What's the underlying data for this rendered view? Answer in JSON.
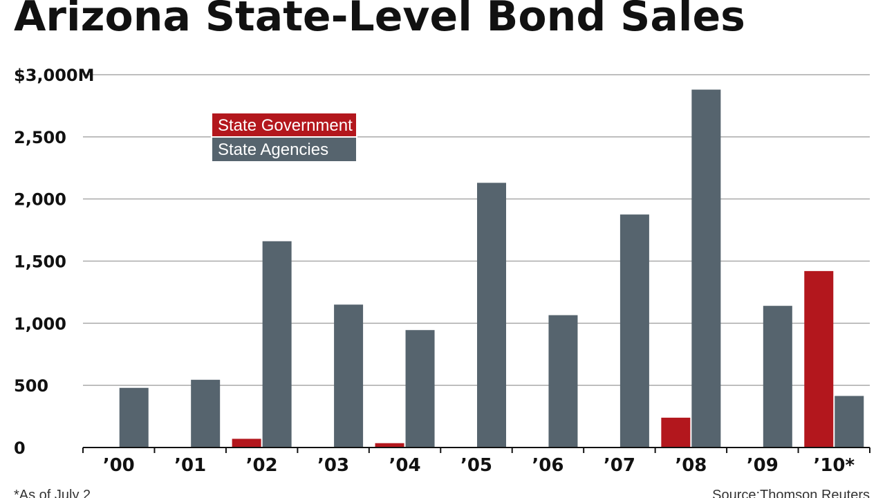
{
  "chart_data": {
    "type": "bar",
    "title": "Arizona State-Level Bond Sales",
    "xlabel": "",
    "ylabel": "",
    "ylim": [
      0,
      3000
    ],
    "yticks": [
      0,
      500,
      1000,
      1500,
      2000,
      2500,
      3000
    ],
    "ytick_labels": [
      "0",
      "500",
      "1,000",
      "1,500",
      "2,000",
      "2,500",
      "$3,000M"
    ],
    "grid": true,
    "categories": [
      "’00",
      "’01",
      "’02",
      "’03",
      "’04",
      "’05",
      "’06",
      "’07",
      "’08",
      "’09",
      "’10*"
    ],
    "series": [
      {
        "name": "State Government",
        "color": "#b3171d",
        "values": [
          0,
          0,
          70,
          0,
          35,
          0,
          0,
          0,
          240,
          0,
          1420
        ]
      },
      {
        "name": "State Agencies",
        "color": "#56646e",
        "values": [
          480,
          545,
          1660,
          1150,
          945,
          2130,
          1065,
          1875,
          2880,
          1140,
          415
        ]
      }
    ],
    "legend_position": "top-left",
    "footnote": "*As of July 2",
    "source": "Source:Thomson Reuters"
  }
}
